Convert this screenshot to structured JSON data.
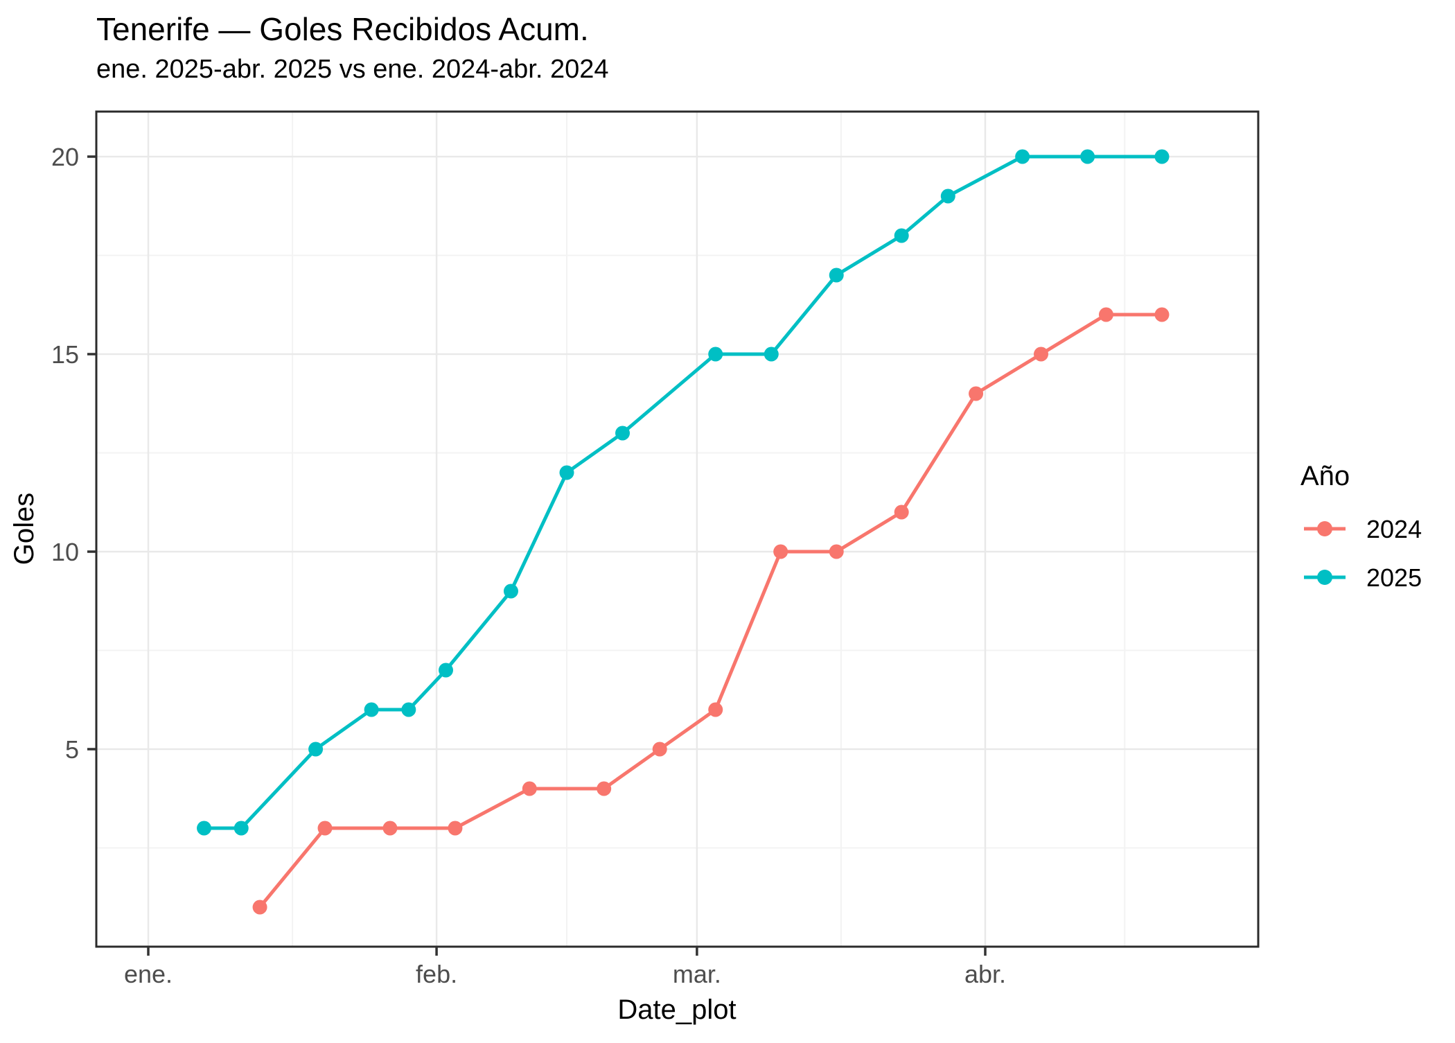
{
  "header": {
    "title": "Tenerife — Goles Recibidos Acum.",
    "subtitle": "ene. 2025-abr. 2025 vs ene. 2024-abr. 2024"
  },
  "axes": {
    "x_label": "Date_plot",
    "y_label": "Goles"
  },
  "legend": {
    "title": "Año",
    "entries": [
      {
        "label": "2024",
        "color": "#F8766D"
      },
      {
        "label": "2025",
        "color": "#00BFC4"
      }
    ]
  },
  "colors": {
    "series_2024": "#F8766D",
    "series_2025": "#00BFC4",
    "grid_major": "#e9e9e9",
    "grid_minor": "#f3f3f3",
    "panel_border": "#2b2b2b",
    "tick_mark": "#333333",
    "tick_text": "#4d4d4d"
  },
  "chart_data": {
    "type": "line",
    "title": "Tenerife — Goles Recibidos Acum.",
    "subtitle": "ene. 2025-abr. 2025 vs ene. 2024-abr. 2024",
    "xlabel": "Date_plot",
    "ylabel": "Goles",
    "x_unit": "days since ene 1",
    "x_axis": {
      "tick_labels": [
        "ene.",
        "feb.",
        "mar.",
        "abr."
      ],
      "tick_days": [
        0,
        31,
        59,
        90
      ],
      "minor_days": [
        15.5,
        45,
        74.5,
        105
      ],
      "range_days": [
        -5.6,
        119.4
      ]
    },
    "y_axis": {
      "tick_labels": [
        "5",
        "10",
        "15",
        "20"
      ],
      "ticks": [
        5,
        10,
        15,
        20
      ],
      "minor": [
        2.5,
        7.5,
        12.5,
        17.5
      ],
      "range": [
        0,
        21.1
      ]
    },
    "grid": "on",
    "legend_position": "right",
    "series": [
      {
        "name": "2024",
        "color": "#F8766D",
        "points": [
          {
            "day": 12,
            "value": 1
          },
          {
            "day": 19,
            "value": 3
          },
          {
            "day": 26,
            "value": 3
          },
          {
            "day": 33,
            "value": 3
          },
          {
            "day": 41,
            "value": 4
          },
          {
            "day": 49,
            "value": 4
          },
          {
            "day": 55,
            "value": 5
          },
          {
            "day": 61,
            "value": 6
          },
          {
            "day": 68,
            "value": 10
          },
          {
            "day": 74,
            "value": 10
          },
          {
            "day": 81,
            "value": 11
          },
          {
            "day": 89,
            "value": 14
          },
          {
            "day": 96,
            "value": 15
          },
          {
            "day": 103,
            "value": 16
          },
          {
            "day": 109,
            "value": 16
          }
        ]
      },
      {
        "name": "2025",
        "color": "#00BFC4",
        "points": [
          {
            "day": 6,
            "value": 3
          },
          {
            "day": 10,
            "value": 3
          },
          {
            "day": 18,
            "value": 5
          },
          {
            "day": 24,
            "value": 6
          },
          {
            "day": 28,
            "value": 6
          },
          {
            "day": 32,
            "value": 7
          },
          {
            "day": 39,
            "value": 9
          },
          {
            "day": 45,
            "value": 12
          },
          {
            "day": 51,
            "value": 13
          },
          {
            "day": 61,
            "value": 15
          },
          {
            "day": 67,
            "value": 15
          },
          {
            "day": 74,
            "value": 17
          },
          {
            "day": 81,
            "value": 18
          },
          {
            "day": 86,
            "value": 19
          },
          {
            "day": 94,
            "value": 20
          },
          {
            "day": 101,
            "value": 20
          },
          {
            "day": 109,
            "value": 20
          }
        ]
      }
    ]
  }
}
